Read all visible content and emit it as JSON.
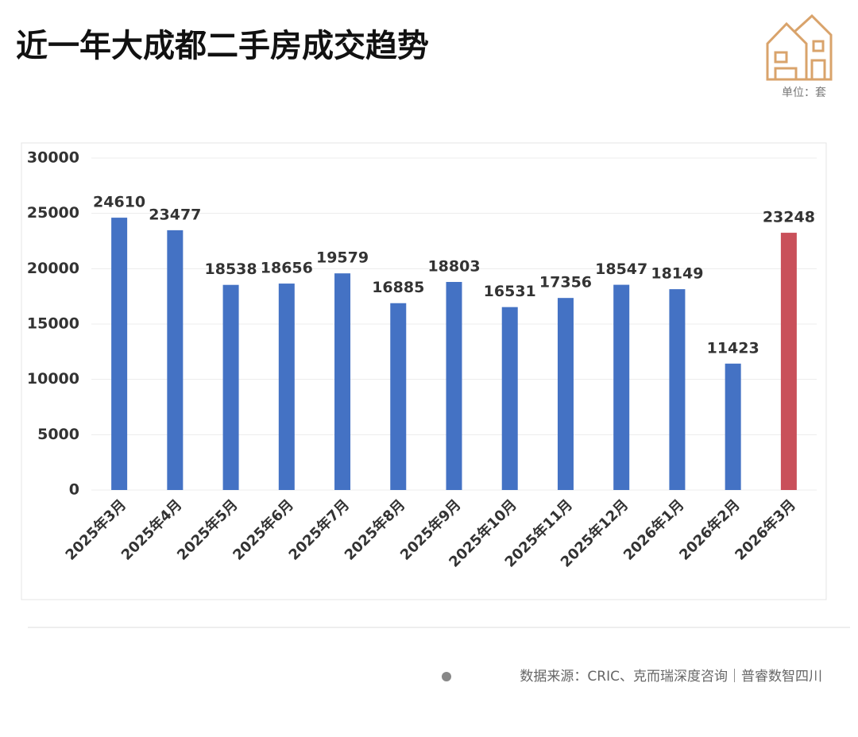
{
  "chart_data": {
    "type": "bar",
    "title": "近一年大成都二手房成交趋势",
    "unit": "单位：套",
    "categories": [
      "2025年3月",
      "2025年4月",
      "2025年5月",
      "2025年6月",
      "2025年7月",
      "2025年8月",
      "2025年9月",
      "2025年10月",
      "2025年11月",
      "2025年12月",
      "2026年1月",
      "2026年2月",
      "2026年3月"
    ],
    "values": [
      24610,
      23477,
      18538,
      18656,
      19579,
      16885,
      18803,
      16531,
      17356,
      18547,
      18149,
      11423,
      23248
    ],
    "colors": [
      "#4472c4",
      "#4472c4",
      "#4472c4",
      "#4472c4",
      "#4472c4",
      "#4472c4",
      "#4472c4",
      "#4472c4",
      "#4472c4",
      "#4472c4",
      "#4472c4",
      "#4472c4",
      "#c9505a"
    ],
    "ylim": [
      0,
      30000
    ],
    "yticks": [
      0,
      5000,
      10000,
      15000,
      20000,
      25000,
      30000
    ],
    "grid": true,
    "source": "数据来源：CRIC、克而瑞深度咨询｜普睿数智四川"
  }
}
